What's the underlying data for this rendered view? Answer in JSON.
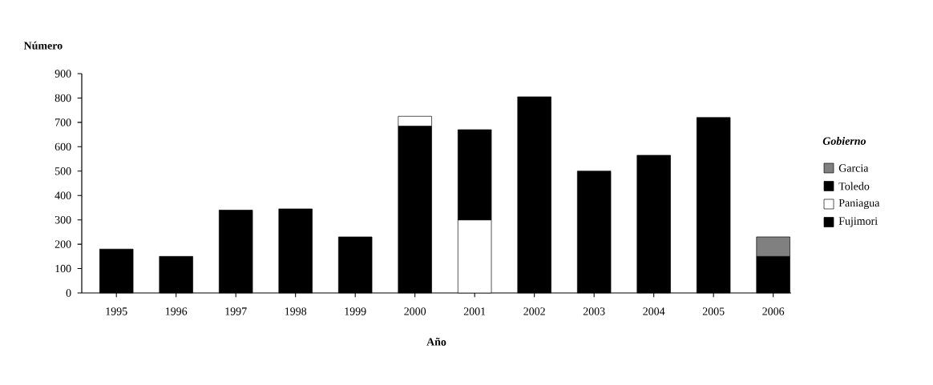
{
  "chart_data": {
    "type": "bar",
    "stacked": true,
    "ylabel": "Número",
    "xlabel": "Año",
    "legend_title": "Gobierno",
    "legend": "right",
    "categories": [
      "1995",
      "1996",
      "1997",
      "1998",
      "1999",
      "2000",
      "2001",
      "2002",
      "2003",
      "2004",
      "2005",
      "2006"
    ],
    "series": [
      {
        "name": "Fujimori",
        "color": "#000000",
        "values": [
          180,
          150,
          340,
          345,
          230,
          685,
          null,
          null,
          null,
          null,
          null,
          null
        ]
      },
      {
        "name": "Paniagua",
        "color": "#ffffff",
        "values": [
          null,
          null,
          null,
          null,
          null,
          40,
          300,
          null,
          null,
          null,
          null,
          null
        ]
      },
      {
        "name": "Toledo",
        "color": "#000000",
        "values": [
          null,
          null,
          null,
          null,
          null,
          null,
          370,
          805,
          500,
          565,
          720,
          150
        ]
      },
      {
        "name": "Garcia",
        "color": "#808080",
        "values": [
          null,
          null,
          null,
          null,
          null,
          null,
          null,
          null,
          null,
          null,
          null,
          80
        ]
      }
    ],
    "ylim": [
      0,
      900
    ],
    "yticks": [
      0,
      100,
      200,
      300,
      400,
      500,
      600,
      700,
      800,
      900
    ]
  }
}
